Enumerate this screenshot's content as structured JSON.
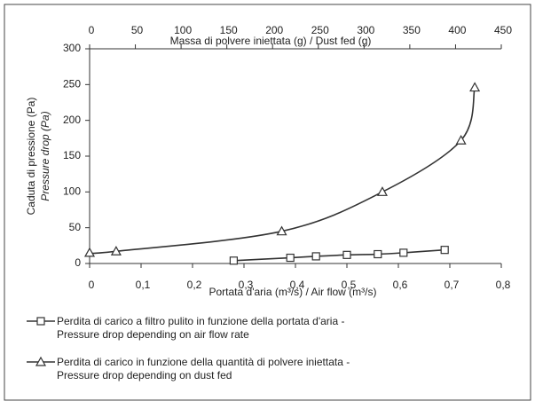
{
  "chart_data": {
    "type": "line",
    "xlabel": "Portata d'aria (m³/s) / Air flow  (m³/s)",
    "x2label": "Massa di polvere iniettata (g) / Dust fed (g)",
    "ylabel": [
      "Caduta di pressione (Pa)",
      "Pressure drop (Pa)"
    ],
    "xlim": [
      0,
      0.8
    ],
    "xticks": [
      0,
      {
        "value": 0.1,
        "label": "0,1"
      },
      {
        "value": 0.2,
        "label": "0,2"
      },
      {
        "value": 0.3,
        "label": "0,3"
      },
      {
        "value": 0.4,
        "label": "0,4"
      },
      {
        "value": 0.5,
        "label": "0,5"
      },
      {
        "value": 0.6,
        "label": "0,6"
      },
      {
        "value": 0.7,
        "label": "0,7"
      },
      {
        "value": 0.8,
        "label": "0,8"
      }
    ],
    "x2lim": [
      0,
      450
    ],
    "x2ticks": [
      0,
      50,
      100,
      150,
      200,
      250,
      300,
      350,
      400,
      450
    ],
    "ylim": [
      0,
      300
    ],
    "yticks": [
      0,
      50,
      100,
      150,
      200,
      250,
      300
    ],
    "series": [
      {
        "name": "Perdita di carico a filtro pulito in funzione della portata d'aria -\nPressure drop depending on air flow rate",
        "color": "#333333",
        "marker": "square",
        "x": [
          0.28,
          0.39,
          0.44,
          0.5,
          0.56,
          0.61,
          0.69
        ],
        "values": [
          4,
          8,
          10,
          12,
          13,
          15,
          19
        ]
      },
      {
        "name": "Perdita di carico in funzione della quantità di polvere iniettata -\nPressure drop depending on dust fed",
        "color": "#333333",
        "marker": "triangle",
        "axis": "x2",
        "x": [
          0,
          29,
          210,
          320,
          406,
          421
        ],
        "values": [
          15,
          17,
          45,
          100,
          172,
          246
        ]
      }
    ]
  }
}
